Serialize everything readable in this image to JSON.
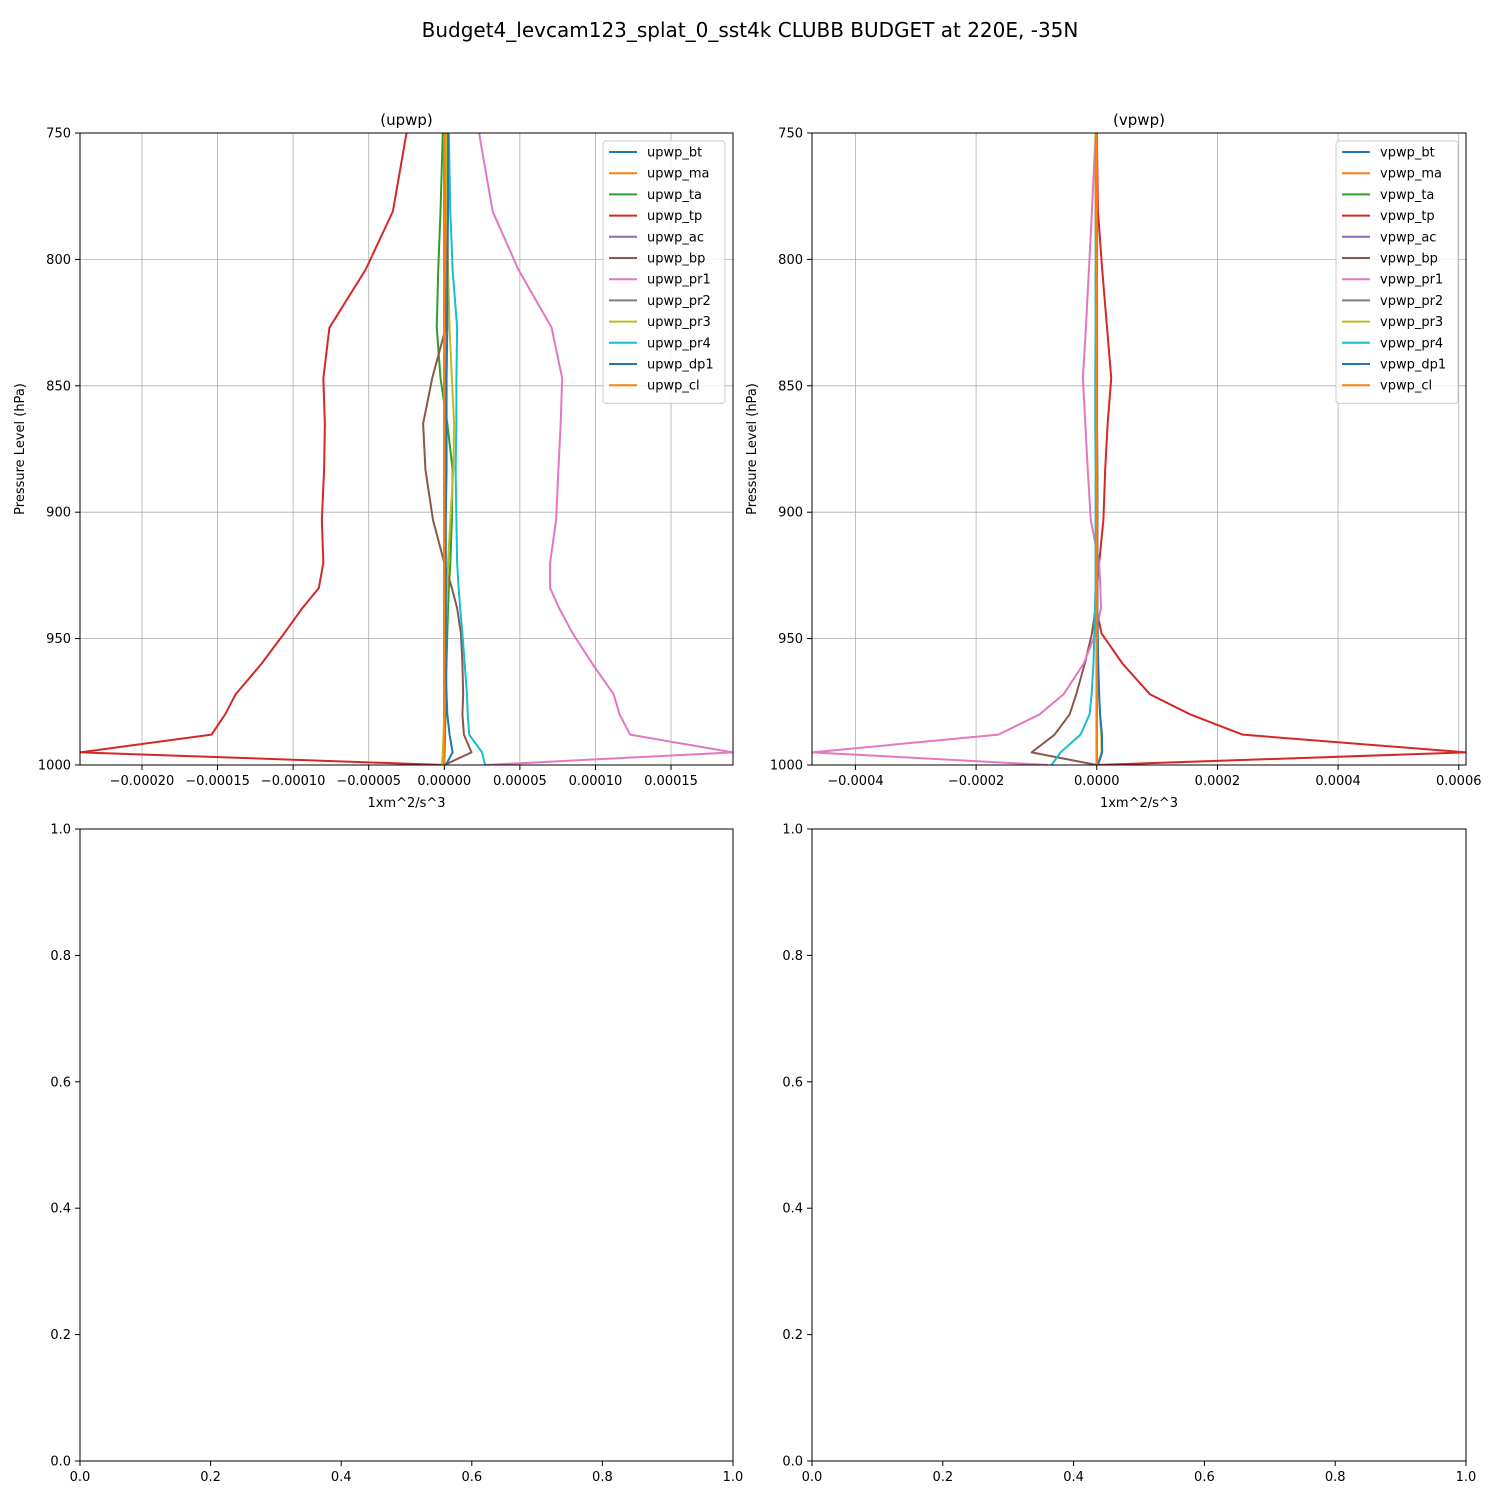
{
  "suptitle": "Budget4_levcam123_splat_0_sst4k CLUBB BUDGET at 220E, -35N",
  "colors": {
    "bt": "#1f77b4",
    "ma": "#ff7f0e",
    "ta": "#2ca02c",
    "tp": "#d62728",
    "ac": "#9467bd",
    "bp": "#8c564b",
    "pr1": "#e377c2",
    "pr2": "#7f7f7f",
    "pr3": "#bcbd22",
    "pr4": "#17becf",
    "dp1": "#1f77b4",
    "cl": "#ff7f0e",
    "grid": "#b0b0b0",
    "axis": "#000000"
  },
  "chart_data": [
    {
      "type": "line",
      "title": "(upwp)",
      "xlabel": "1xm^2/s^3",
      "ylabel": "Pressure Level (hPa)",
      "xlim": [
        -0.000241,
        0.000191
      ],
      "ylim": [
        1000,
        750
      ],
      "xticks": [
        -0.0002,
        -0.00015,
        -0.0001,
        -5e-05,
        0.0,
        5e-05,
        0.0001,
        0.00015
      ],
      "xtick_labels": [
        "−0.00020",
        "−0.00015",
        "−0.00010",
        "−0.00005",
        "0.00000",
        "0.00005",
        "0.00010",
        "0.00015"
      ],
      "yticks": [
        750,
        800,
        850,
        900,
        950,
        1000
      ],
      "ytick_labels": [
        "750",
        "800",
        "850",
        "900",
        "950",
        "1000"
      ],
      "grid": true,
      "legend_position": "top-right",
      "levels": [
        750,
        781,
        804,
        827,
        847,
        865,
        883,
        903,
        920,
        930,
        938,
        948,
        960,
        972,
        980,
        988,
        995,
        1000
      ],
      "series": [
        {
          "name": "upwp_bt",
          "color_key": "bt",
          "values": [
            0,
            0,
            0,
            0,
            0,
            0,
            0,
            0,
            0,
            0,
            0,
            0,
            0,
            0,
            0,
            0,
            0,
            0
          ]
        },
        {
          "name": "upwp_ma",
          "color_key": "ma",
          "values": [
            1.2e-06,
            1.1e-06,
            1e-06,
            1e-06,
            9e-07,
            8e-07,
            7e-07,
            6e-07,
            5e-07,
            5e-07,
            4e-07,
            4e-07,
            3e-07,
            3e-07,
            2e-07,
            2e-07,
            1e-07,
            0
          ]
        },
        {
          "name": "upwp_ta",
          "color_key": "ta",
          "values": [
            -1e-06,
            -2.5e-06,
            -4e-06,
            -5e-06,
            -2.5e-06,
            2e-06,
            5.5e-06,
            5e-06,
            4e-06,
            3e-06,
            2.5e-06,
            2e-06,
            1.5e-06,
            1e-06,
            8e-07,
            5e-07,
            3e-07,
            0
          ]
        },
        {
          "name": "upwp_tp",
          "color_key": "tp",
          "values": [
            -2.5e-05,
            -3.4e-05,
            -5.2e-05,
            -7.6e-05,
            -8e-05,
            -7.9e-05,
            -7.95e-05,
            -8.1e-05,
            -8e-05,
            -8.3e-05,
            -9.4e-05,
            -0.000106,
            -0.000121,
            -0.000138,
            -0.000145,
            -0.000154,
            -0.000241,
            0
          ]
        },
        {
          "name": "upwp_ac",
          "color_key": "ac",
          "values": [
            0,
            0,
            0,
            0,
            0,
            0,
            0,
            0,
            0,
            0,
            0,
            0,
            0,
            0,
            0,
            0,
            0,
            0
          ]
        },
        {
          "name": "upwp_bp",
          "color_key": "bp",
          "values": [
            0,
            0,
            0,
            1e-06,
            -8e-06,
            -1.4e-05,
            -1.25e-05,
            -7.5e-06,
            0,
            5e-06,
            8.5e-06,
            1.1e-05,
            1.2e-05,
            1.25e-05,
            1.2e-05,
            1.3e-05,
            1.8e-05,
            0
          ]
        },
        {
          "name": "upwp_pr1",
          "color_key": "pr1",
          "values": [
            2.3e-05,
            3.2e-05,
            4.9e-05,
            7.1e-05,
            7.8e-05,
            7.7e-05,
            7.55e-05,
            7.4e-05,
            7e-05,
            7e-05,
            7.6e-05,
            8.5e-05,
            9.8e-05,
            0.000112,
            0.000116,
            0.000123,
            0.000191,
            2.7e-05
          ]
        },
        {
          "name": "upwp_pr2",
          "color_key": "pr2",
          "values": [
            0,
            0,
            0,
            0,
            0,
            0,
            0,
            0,
            0,
            0,
            0,
            0,
            0,
            0,
            0,
            0,
            0,
            0
          ]
        },
        {
          "name": "upwp_pr3",
          "color_key": "pr3",
          "values": [
            1e-06,
            2e-06,
            2.5e-06,
            3.5e-06,
            5e-06,
            6.5e-06,
            6e-06,
            4e-06,
            2.5e-06,
            2e-06,
            1.5e-06,
            1e-06,
            1e-06,
            5e-07,
            0,
            -5e-07,
            -1e-06,
            -1.5e-06
          ]
        },
        {
          "name": "upwp_pr4",
          "color_key": "pr4",
          "values": [
            3e-06,
            4e-06,
            5.5e-06,
            8.5e-06,
            8e-06,
            8e-06,
            7.5e-06,
            8e-06,
            8.5e-06,
            9.5e-06,
            1.05e-05,
            1.2e-05,
            1.35e-05,
            1.5e-05,
            1.55e-05,
            1.65e-05,
            2.5e-05,
            2.7e-05
          ]
        },
        {
          "name": "upwp_dp1",
          "color_key": "dp1",
          "values": [
            2.5e-06,
            2.5e-06,
            2e-06,
            2e-06,
            1.5e-06,
            1.5e-06,
            1.5e-06,
            1e-06,
            1e-06,
            1e-06,
            1e-06,
            1e-06,
            1e-06,
            1.5e-06,
            2e-06,
            3.5e-06,
            5.5e-06,
            1e-06
          ]
        },
        {
          "name": "upwp_cl",
          "color_key": "cl",
          "values": [
            0,
            0,
            0,
            0,
            0,
            0,
            0,
            0,
            0,
            0,
            0,
            0,
            0,
            0,
            0,
            0,
            0,
            0
          ]
        }
      ]
    },
    {
      "type": "line",
      "title": "(vpwp)",
      "xlabel": "1xm^2/s^3",
      "ylabel": "Pressure Level (hPa)",
      "xlim": [
        -0.000472,
        0.000612
      ],
      "ylim": [
        1000,
        750
      ],
      "xticks": [
        -0.0004,
        -0.0002,
        0.0,
        0.0002,
        0.0004,
        0.0006
      ],
      "xtick_labels": [
        "−0.0004",
        "−0.0002",
        "0.0000",
        "0.0002",
        "0.0004",
        "0.0006"
      ],
      "yticks": [
        750,
        800,
        850,
        900,
        950,
        1000
      ],
      "ytick_labels": [
        "750",
        "800",
        "850",
        "900",
        "950",
        "1000"
      ],
      "grid": true,
      "legend_position": "top-right",
      "levels": [
        750,
        781,
        804,
        827,
        847,
        865,
        883,
        903,
        920,
        930,
        938,
        948,
        960,
        972,
        980,
        988,
        995,
        1000
      ],
      "series": [
        {
          "name": "vpwp_bt",
          "color_key": "bt",
          "values": [
            0,
            0,
            0,
            0,
            0,
            0,
            0,
            0,
            0,
            0,
            0,
            0,
            0,
            0,
            0,
            0,
            0,
            0
          ]
        },
        {
          "name": "vpwp_ma",
          "color_key": "ma",
          "values": [
            -2e-06,
            -2e-06,
            -1.5e-06,
            -1.5e-06,
            -1e-06,
            -1e-06,
            -1e-06,
            -1e-06,
            -5e-07,
            -5e-07,
            -5e-07,
            0,
            0,
            0,
            0,
            0,
            0,
            0
          ]
        },
        {
          "name": "vpwp_ta",
          "color_key": "ta",
          "values": [
            0,
            0,
            0,
            0,
            0,
            0,
            0,
            0,
            0,
            0,
            0,
            0,
            0,
            0,
            0,
            0,
            0,
            0
          ]
        },
        {
          "name": "vpwp_tp",
          "color_key": "tp",
          "values": [
            0,
            2e-06,
            9e-06,
            1.7e-05,
            2.4e-05,
            1.8e-05,
            1.4e-05,
            1.1e-05,
            4e-06,
            0,
            -1e-06,
            8e-06,
            4.3e-05,
            8.8e-05,
            0.000155,
            0.000242,
            0.000612,
            0
          ]
        },
        {
          "name": "vpwp_ac",
          "color_key": "ac",
          "values": [
            0,
            0,
            0,
            0,
            0,
            0,
            0,
            0,
            0,
            0,
            0,
            0,
            0,
            0,
            0,
            0,
            0,
            0
          ]
        },
        {
          "name": "vpwp_bp",
          "color_key": "bp",
          "values": [
            0,
            0,
            0,
            0,
            0,
            0,
            0,
            0,
            0,
            0,
            -2e-06,
            -8e-06,
            -2e-05,
            -3.4e-05,
            -4.5e-05,
            -7e-05,
            -0.000108,
            0
          ]
        },
        {
          "name": "vpwp_pr1",
          "color_key": "pr1",
          "values": [
            -2e-06,
            -8e-06,
            -1.3e-05,
            -1.8e-05,
            -2.3e-05,
            -1.9e-05,
            -1.5e-05,
            -1e-05,
            4e-06,
            6e-06,
            7e-06,
            -2e-06,
            -2.2e-05,
            -5.5e-05,
            -9.5e-05,
            -0.000163,
            -0.000472,
            -8e-05
          ]
        },
        {
          "name": "vpwp_pr2",
          "color_key": "pr2",
          "values": [
            0,
            0,
            0,
            0,
            0,
            0,
            0,
            0,
            0,
            0,
            0,
            0,
            0,
            0,
            0,
            0,
            0,
            0
          ]
        },
        {
          "name": "vpwp_pr3",
          "color_key": "pr3",
          "values": [
            -2e-06,
            -1.5e-06,
            -1e-06,
            -1e-06,
            -5e-07,
            0,
            1e-06,
            1e-06,
            1e-06,
            1e-06,
            1e-06,
            1.5e-06,
            2e-06,
            3.5e-06,
            5.5e-06,
            7.5e-06,
            8e-06,
            1e-06
          ]
        },
        {
          "name": "vpwp_pr4",
          "color_key": "pr4",
          "values": [
            -1e-06,
            -1.5e-06,
            -2e-06,
            -2e-06,
            -2.5e-06,
            -2.5e-06,
            -2e-06,
            -2e-06,
            -2e-06,
            -2e-06,
            -3e-06,
            -4e-06,
            -5.5e-06,
            -8.5e-06,
            -1.2e-05,
            -2.7e-05,
            -6e-05,
            -7.5e-05
          ]
        },
        {
          "name": "vpwp_dp1",
          "color_key": "dp1",
          "values": [
            5e-07,
            5e-07,
            5e-07,
            5e-07,
            5e-07,
            5e-07,
            1e-06,
            1e-06,
            1e-06,
            1e-06,
            1e-06,
            1.5e-06,
            2.5e-06,
            4e-06,
            5.5e-06,
            8.5e-06,
            9e-06,
            2e-06
          ]
        },
        {
          "name": "vpwp_cl",
          "color_key": "cl",
          "values": [
            0,
            0,
            0,
            0,
            0,
            0,
            0,
            0,
            0,
            0,
            0,
            0,
            0,
            0,
            0,
            0,
            0,
            0
          ]
        }
      ]
    },
    {
      "type": "line",
      "title": "",
      "xlim": [
        0,
        1
      ],
      "ylim": [
        0,
        1
      ],
      "xticks": [
        0.0,
        0.2,
        0.4,
        0.6,
        0.8,
        1.0
      ],
      "xtick_labels": [
        "0.0",
        "0.2",
        "0.4",
        "0.6",
        "0.8",
        "1.0"
      ],
      "yticks": [
        0.0,
        0.2,
        0.4,
        0.6,
        0.8,
        1.0
      ],
      "ytick_labels": [
        "0.0",
        "0.2",
        "0.4",
        "0.6",
        "0.8",
        "1.0"
      ],
      "grid": false,
      "series": []
    },
    {
      "type": "line",
      "title": "",
      "xlim": [
        0,
        1
      ],
      "ylim": [
        0,
        1
      ],
      "xticks": [
        0.0,
        0.2,
        0.4,
        0.6,
        0.8,
        1.0
      ],
      "xtick_labels": [
        "0.0",
        "0.2",
        "0.4",
        "0.6",
        "0.8",
        "1.0"
      ],
      "yticks": [
        0.0,
        0.2,
        0.4,
        0.6,
        0.8,
        1.0
      ],
      "ytick_labels": [
        "0.0",
        "0.2",
        "0.4",
        "0.6",
        "0.8",
        "1.0"
      ],
      "grid": false,
      "series": []
    }
  ]
}
